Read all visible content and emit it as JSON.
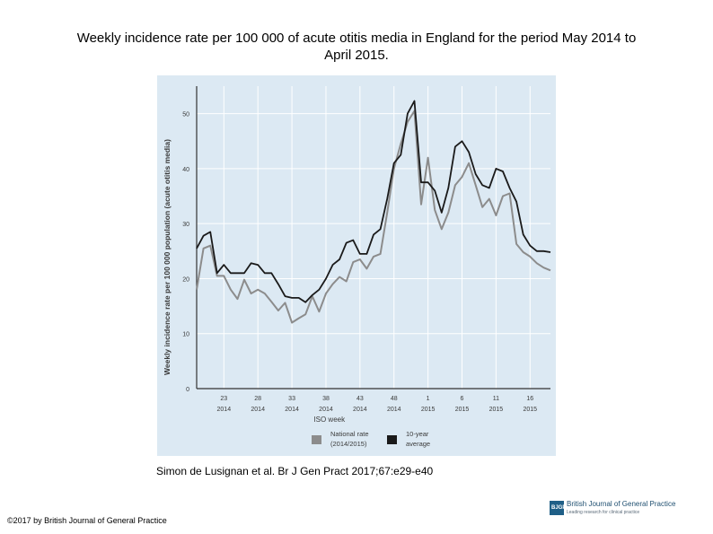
{
  "title_line1": "Weekly incidence rate per 100 000 of acute otitis media in England for the period May 2014 to",
  "title_line2": "April 2015.",
  "citation": "Simon de Lusignan et al. Br J Gen Pract 2017;67:e29-e40",
  "copyright": "©2017 by British Journal of General Practice",
  "logo": {
    "abbr": "BJGP",
    "name": "British Journal of General Practice",
    "tagline": "Leading research for clinical practice"
  },
  "colors": {
    "panel": "#dce9f3",
    "grid": "#ffffff",
    "national": "#8c8c8c",
    "average": "#1a1a1a",
    "axis_text": "#3a3a3a"
  },
  "chart_data": {
    "type": "line",
    "title": "",
    "xlabel": "ISO week",
    "ylabel": "Weekly incidence rate per 100 000 population (acute otitis media)",
    "ylim": [
      0,
      55
    ],
    "yticks": [
      0,
      10,
      20,
      30,
      40,
      50
    ],
    "xlim": [
      19,
      71
    ],
    "xticks": [
      {
        "pos": 23,
        "week": "23",
        "year": "2014"
      },
      {
        "pos": 28,
        "week": "28",
        "year": "2014"
      },
      {
        "pos": 33,
        "week": "33",
        "year": "2014"
      },
      {
        "pos": 38,
        "week": "38",
        "year": "2014"
      },
      {
        "pos": 43,
        "week": "43",
        "year": "2014"
      },
      {
        "pos": 48,
        "week": "48",
        "year": "2014"
      },
      {
        "pos": 53,
        "week": "1",
        "year": "2015"
      },
      {
        "pos": 58,
        "week": "6",
        "year": "2015"
      },
      {
        "pos": 63,
        "week": "11",
        "year": "2015"
      },
      {
        "pos": 68,
        "week": "16",
        "year": "2015"
      }
    ],
    "grid": true,
    "legend_position": "bottom",
    "legend": [
      {
        "name": "National rate (2014/2015)",
        "label_line1": "National rate",
        "label_line2": "(2014/2015)",
        "color": "#8c8c8c"
      },
      {
        "name": "10-year average",
        "label_line1": "10-year",
        "label_line2": "average",
        "color": "#1a1a1a"
      }
    ],
    "x": [
      19,
      20,
      21,
      22,
      23,
      24,
      25,
      26,
      27,
      28,
      29,
      30,
      31,
      32,
      33,
      34,
      35,
      36,
      37,
      38,
      39,
      40,
      41,
      42,
      43,
      44,
      45,
      46,
      47,
      48,
      49,
      50,
      51,
      52,
      53,
      54,
      55,
      56,
      57,
      58,
      59,
      60,
      61,
      62,
      63,
      64,
      65,
      66,
      67,
      68,
      69,
      70,
      71
    ],
    "series": [
      {
        "name": "National rate (2014/2015)",
        "values": [
          18,
          25.5,
          26,
          20.5,
          20.5,
          18,
          16.3,
          19.8,
          17.3,
          18,
          17.3,
          15.8,
          14.2,
          15.6,
          12,
          12.8,
          13.5,
          16.8,
          14,
          17.3,
          19,
          20.3,
          19.5,
          23,
          23.5,
          21.8,
          24,
          24.5,
          32,
          40,
          44.5,
          48.5,
          50.5,
          33.5,
          42,
          32.5,
          29,
          32,
          37,
          38.5,
          41,
          37,
          33,
          34.5,
          31.5,
          35,
          35.5,
          26.3,
          24.8,
          24,
          22.8,
          22,
          21.5
        ]
      },
      {
        "name": "10-year average",
        "values": [
          25.5,
          27.8,
          28.5,
          21,
          22.5,
          21,
          21,
          21,
          22.8,
          22.5,
          21,
          21,
          19,
          16.8,
          16.5,
          16.5,
          15.7,
          17,
          18,
          20,
          22.5,
          23.5,
          26.5,
          27,
          24.5,
          24.5,
          28,
          29,
          34.5,
          41,
          42.5,
          50,
          52.3,
          37.5,
          37.5,
          36,
          32,
          36.5,
          44,
          45,
          43,
          39,
          37,
          36.5,
          40,
          39.5,
          36.5,
          34,
          28,
          26,
          25,
          25,
          24.8
        ]
      }
    ]
  }
}
